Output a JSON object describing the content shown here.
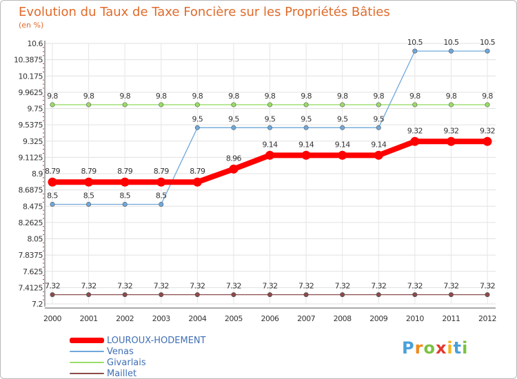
{
  "chart_data": {
    "type": "line",
    "title": "Evolution du Taux de Taxe Foncière sur les Propriétés Bâties",
    "ylabel": "(en %)",
    "xlabel": "",
    "ylim": [
      7.2,
      10.6
    ],
    "y_ticks": [
      "10.6",
      "10.3875",
      "10.175",
      "9.9625",
      "9.75",
      "9.5375",
      "9.325",
      "9.1125",
      "8.9",
      "8.6875",
      "8.475",
      "8.2625",
      "8.05",
      "7.8375",
      "7.625",
      "7.4125",
      "7.2"
    ],
    "categories": [
      "2000",
      "2001",
      "2002",
      "2003",
      "2004",
      "2005",
      "2006",
      "2007",
      "2008",
      "2009",
      "2010",
      "2011",
      "2012"
    ],
    "series": [
      {
        "name": "LOUROUX-HODEMENT",
        "color": "#ff0000",
        "values": [
          8.79,
          8.79,
          8.79,
          8.79,
          8.79,
          8.96,
          9.14,
          9.14,
          9.14,
          9.14,
          9.32,
          9.32,
          9.32
        ]
      },
      {
        "name": "Venas",
        "color": "#6fa8dc",
        "values": [
          8.5,
          8.5,
          8.5,
          8.5,
          9.5,
          9.5,
          9.5,
          9.5,
          9.5,
          9.5,
          10.5,
          10.5,
          10.5
        ]
      },
      {
        "name": "Givarlais",
        "color": "#99dd66",
        "values": [
          9.8,
          9.8,
          9.8,
          9.8,
          9.8,
          9.8,
          9.8,
          9.8,
          9.8,
          9.8,
          9.8,
          9.8,
          9.8
        ]
      },
      {
        "name": "Maillet",
        "color": "#8b4a4a",
        "values": [
          7.32,
          7.32,
          7.32,
          7.32,
          7.32,
          7.32,
          7.32,
          7.32,
          7.32,
          7.32,
          7.32,
          7.32,
          7.32
        ]
      }
    ]
  },
  "logo": {
    "letters": [
      "P",
      "r",
      "o",
      "x",
      "i",
      "t",
      "i"
    ],
    "colors": [
      "#4aa0d8",
      "#f08a1c",
      "#7cc242",
      "#e23a2f",
      "#f5b51b",
      "#4aa0d8",
      "#7cc242"
    ]
  }
}
